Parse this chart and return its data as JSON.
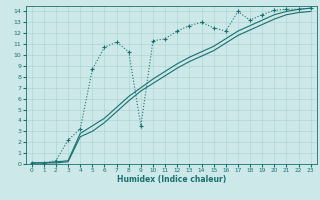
{
  "xlabel": "Humidex (Indice chaleur)",
  "bg_color": "#cce8e8",
  "grid_color": "#b0d4d4",
  "line_color": "#1a7070",
  "xlim": [
    -0.5,
    23.5
  ],
  "ylim": [
    0,
    14.5
  ],
  "xticks": [
    0,
    1,
    2,
    3,
    4,
    5,
    6,
    7,
    8,
    9,
    10,
    11,
    12,
    13,
    14,
    15,
    16,
    17,
    18,
    19,
    20,
    21,
    22,
    23
  ],
  "yticks": [
    0,
    1,
    2,
    3,
    4,
    5,
    6,
    7,
    8,
    9,
    10,
    11,
    12,
    13,
    14
  ],
  "line1_x": [
    0,
    1,
    2,
    3,
    4,
    5,
    6,
    7,
    8,
    9,
    10,
    11,
    12,
    13,
    14,
    15,
    16,
    17,
    18,
    19,
    20,
    21,
    22,
    23
  ],
  "line1_y": [
    0.1,
    0.1,
    0.3,
    2.2,
    3.2,
    8.7,
    10.7,
    11.2,
    10.3,
    3.5,
    11.3,
    11.5,
    12.2,
    12.7,
    13.0,
    12.5,
    12.2,
    14.0,
    13.2,
    13.7,
    14.1,
    14.2,
    14.2,
    14.3
  ],
  "line2_x": [
    0,
    1,
    2,
    3,
    4,
    5,
    6,
    7,
    8,
    9,
    10,
    11,
    12,
    13,
    14,
    15,
    16,
    17,
    18,
    19,
    20,
    21,
    22,
    23
  ],
  "line2_y": [
    0.1,
    0.1,
    0.2,
    0.3,
    2.8,
    3.5,
    4.2,
    5.2,
    6.2,
    7.0,
    7.8,
    8.5,
    9.2,
    9.8,
    10.3,
    10.8,
    11.5,
    12.2,
    12.7,
    13.2,
    13.7,
    14.0,
    14.2,
    14.3
  ],
  "line3_x": [
    0,
    1,
    2,
    3,
    4,
    5,
    6,
    7,
    8,
    9,
    10,
    11,
    12,
    13,
    14,
    15,
    16,
    17,
    18,
    19,
    20,
    21,
    22,
    23
  ],
  "line3_y": [
    0.1,
    0.1,
    0.1,
    0.2,
    2.5,
    3.0,
    3.8,
    4.8,
    5.8,
    6.7,
    7.4,
    8.1,
    8.8,
    9.4,
    9.9,
    10.4,
    11.1,
    11.8,
    12.3,
    12.8,
    13.3,
    13.7,
    13.9,
    14.0
  ]
}
